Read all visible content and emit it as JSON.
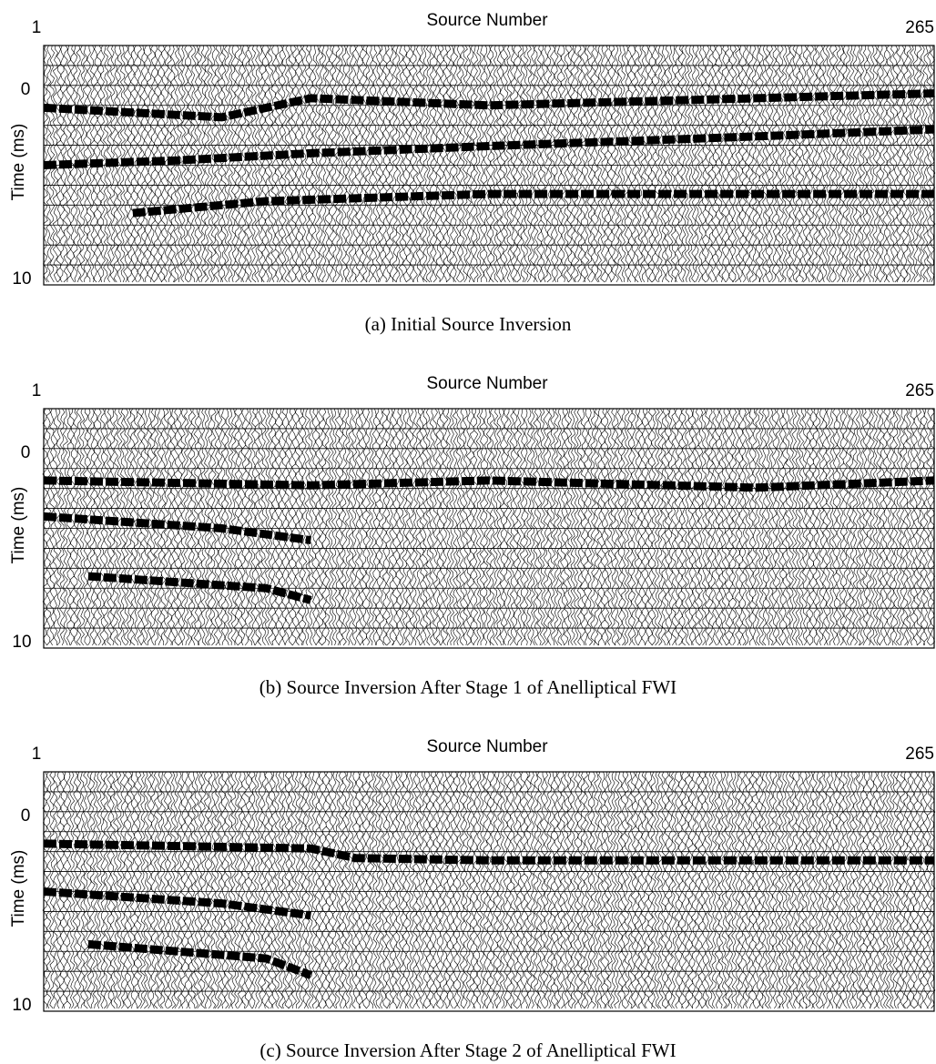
{
  "panels": [
    {
      "x_label": "Source Number",
      "x_start": "1",
      "x_end": "265",
      "y_label": "Time (ms)",
      "y_top": "0",
      "y_bottom": "10",
      "caption": "(a) Initial Source Inversion"
    },
    {
      "x_label": "Source Number",
      "x_start": "1",
      "x_end": "265",
      "y_label": "Time (ms)",
      "y_top": "0",
      "y_bottom": "10",
      "caption": "(b) Source Inversion After Stage 1 of Anelliptical FWI"
    },
    {
      "x_label": "Source Number",
      "x_start": "1",
      "x_end": "265",
      "y_label": "Time (ms)",
      "y_top": "0",
      "y_bottom": "10",
      "caption": "(c) Source Inversion After Stage 2 of Anelliptical FWI"
    }
  ]
}
